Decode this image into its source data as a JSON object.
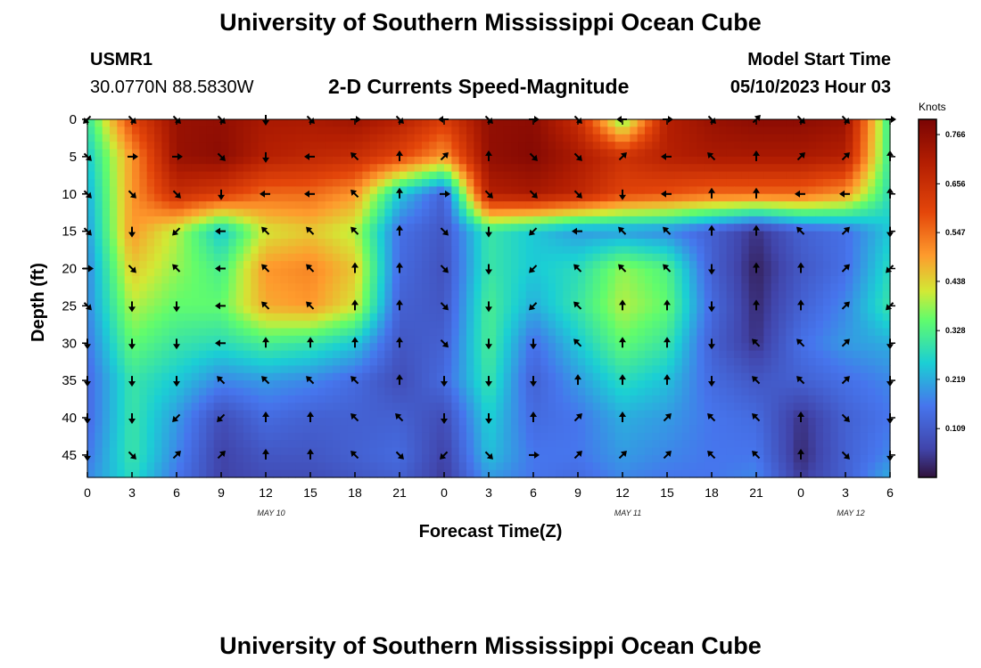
{
  "page_title": "University of Southern Mississippi Ocean Cube",
  "station": {
    "id": "USMR1",
    "coords": "30.0770N  88.5830W"
  },
  "model": {
    "label": "Model Start Time",
    "value": "05/10/2023 Hour 03"
  },
  "chart_title": "2-D Currents Speed-Magnitude",
  "bottom_title": "University of Southern Mississippi Ocean Cube",
  "chart_data": {
    "type": "heatmap",
    "title": "2-D Currents Speed-Magnitude",
    "xlabel": "Forecast Time(Z)",
    "ylabel": "Depth (ft)",
    "x_tick_labels": [
      "0",
      "3",
      "6",
      "9",
      "12",
      "15",
      "18",
      "21",
      "0",
      "3",
      "6",
      "9",
      "12",
      "15",
      "18",
      "21",
      "0",
      "3",
      "6"
    ],
    "x_hours": [
      0,
      3,
      6,
      9,
      12,
      15,
      18,
      21,
      24,
      27,
      30,
      33,
      36,
      39,
      42,
      45,
      48,
      51,
      54
    ],
    "date_labels": [
      {
        "text": "MAY 10",
        "hour": 12
      },
      {
        "text": "MAY 11",
        "hour": 36
      },
      {
        "text": "MAY 12",
        "hour": 51
      }
    ],
    "xlim_hours": [
      0,
      54
    ],
    "y_ticks": [
      0,
      5,
      10,
      15,
      20,
      25,
      30,
      35,
      40,
      45
    ],
    "ylim": [
      0,
      48
    ],
    "y_inverted": true,
    "colorbar": {
      "unit": "Knots",
      "ticks": [
        "0.766",
        "0.656",
        "0.547",
        "0.438",
        "0.328",
        "0.219",
        "0.109"
      ],
      "tick_values": [
        0.766,
        0.656,
        0.547,
        0.438,
        0.328,
        0.219,
        0.109
      ],
      "range": [
        0.0,
        0.8
      ],
      "colormap": "jet"
    },
    "speed_grid": {
      "x_hours": [
        0,
        3,
        6,
        9,
        12,
        15,
        18,
        21,
        24,
        27,
        30,
        33,
        36,
        39,
        42,
        45,
        48,
        51,
        54
      ],
      "depths": [
        0,
        5,
        10,
        15,
        20,
        25,
        30,
        35,
        40,
        45,
        48
      ],
      "values": [
        [
          0.3,
          0.6,
          0.75,
          0.76,
          0.72,
          0.72,
          0.74,
          0.7,
          0.62,
          0.76,
          0.77,
          0.66,
          0.35,
          0.7,
          0.75,
          0.77,
          0.77,
          0.75,
          0.3
        ],
        [
          0.25,
          0.5,
          0.75,
          0.77,
          0.7,
          0.68,
          0.66,
          0.6,
          0.5,
          0.76,
          0.78,
          0.72,
          0.65,
          0.7,
          0.72,
          0.72,
          0.72,
          0.7,
          0.3
        ],
        [
          0.22,
          0.5,
          0.66,
          0.62,
          0.55,
          0.55,
          0.5,
          0.25,
          0.12,
          0.7,
          0.72,
          0.68,
          0.6,
          0.58,
          0.55,
          0.55,
          0.55,
          0.5,
          0.28
        ],
        [
          0.2,
          0.5,
          0.4,
          0.25,
          0.42,
          0.45,
          0.4,
          0.15,
          0.1,
          0.3,
          0.25,
          0.2,
          0.2,
          0.18,
          0.12,
          0.04,
          0.12,
          0.15,
          0.25
        ],
        [
          0.18,
          0.45,
          0.38,
          0.32,
          0.5,
          0.52,
          0.45,
          0.14,
          0.09,
          0.3,
          0.25,
          0.28,
          0.38,
          0.33,
          0.12,
          0.02,
          0.1,
          0.15,
          0.28
        ],
        [
          0.18,
          0.4,
          0.35,
          0.35,
          0.48,
          0.5,
          0.42,
          0.12,
          0.1,
          0.32,
          0.22,
          0.3,
          0.4,
          0.35,
          0.14,
          0.03,
          0.12,
          0.18,
          0.3
        ],
        [
          0.16,
          0.35,
          0.3,
          0.28,
          0.32,
          0.3,
          0.25,
          0.1,
          0.12,
          0.32,
          0.15,
          0.25,
          0.35,
          0.3,
          0.12,
          0.04,
          0.15,
          0.2,
          0.22
        ],
        [
          0.14,
          0.3,
          0.25,
          0.18,
          0.2,
          0.18,
          0.14,
          0.08,
          0.14,
          0.3,
          0.12,
          0.2,
          0.28,
          0.24,
          0.14,
          0.1,
          0.12,
          0.15,
          0.18
        ],
        [
          0.14,
          0.3,
          0.2,
          0.08,
          0.14,
          0.12,
          0.12,
          0.12,
          0.08,
          0.26,
          0.14,
          0.16,
          0.22,
          0.2,
          0.16,
          0.14,
          0.04,
          0.12,
          0.16
        ],
        [
          0.16,
          0.3,
          0.18,
          0.06,
          0.1,
          0.1,
          0.12,
          0.14,
          0.06,
          0.24,
          0.16,
          0.16,
          0.2,
          0.18,
          0.16,
          0.16,
          0.03,
          0.12,
          0.18
        ],
        [
          0.18,
          0.28,
          0.16,
          0.06,
          0.08,
          0.08,
          0.1,
          0.12,
          0.05,
          0.2,
          0.16,
          0.14,
          0.18,
          0.16,
          0.16,
          0.18,
          0.05,
          0.12,
          0.22
        ]
      ]
    },
    "arrows": {
      "depths": [
        0,
        5,
        10,
        15,
        20,
        25,
        30,
        35,
        40,
        45
      ],
      "directions_deg": [
        [
          225,
          135,
          135,
          135,
          180,
          135,
          90,
          135,
          270,
          135,
          90,
          135,
          270,
          90,
          135,
          45,
          135,
          135,
          90
        ],
        [
          135,
          90,
          90,
          135,
          180,
          270,
          315,
          0,
          45,
          0,
          135,
          135,
          45,
          270,
          315,
          0,
          45,
          45,
          0
        ],
        [
          135,
          135,
          135,
          180,
          270,
          270,
          315,
          0,
          90,
          135,
          135,
          135,
          180,
          270,
          0,
          0,
          270,
          270,
          0
        ],
        [
          135,
          180,
          225,
          270,
          315,
          315,
          315,
          0,
          135,
          180,
          225,
          270,
          315,
          315,
          0,
          0,
          315,
          45,
          180
        ],
        [
          90,
          135,
          315,
          270,
          315,
          315,
          0,
          0,
          135,
          180,
          225,
          315,
          315,
          315,
          180,
          0,
          0,
          45,
          225
        ],
        [
          135,
          180,
          180,
          270,
          315,
          315,
          0,
          0,
          135,
          180,
          225,
          315,
          0,
          0,
          180,
          0,
          0,
          45,
          225
        ],
        [
          180,
          180,
          180,
          270,
          0,
          0,
          0,
          0,
          135,
          180,
          180,
          315,
          0,
          0,
          180,
          315,
          315,
          45,
          180
        ],
        [
          180,
          180,
          180,
          315,
          315,
          315,
          315,
          0,
          180,
          180,
          180,
          0,
          0,
          0,
          180,
          315,
          315,
          45,
          180
        ],
        [
          180,
          180,
          225,
          225,
          0,
          0,
          315,
          315,
          180,
          180,
          0,
          45,
          0,
          45,
          315,
          315,
          0,
          135,
          180
        ],
        [
          180,
          135,
          45,
          45,
          0,
          0,
          315,
          135,
          225,
          135,
          90,
          45,
          45,
          45,
          315,
          315,
          0,
          135,
          180
        ]
      ]
    }
  },
  "colors": {
    "arrow": "#000000",
    "axis": "#000000",
    "background": "#ffffff"
  }
}
